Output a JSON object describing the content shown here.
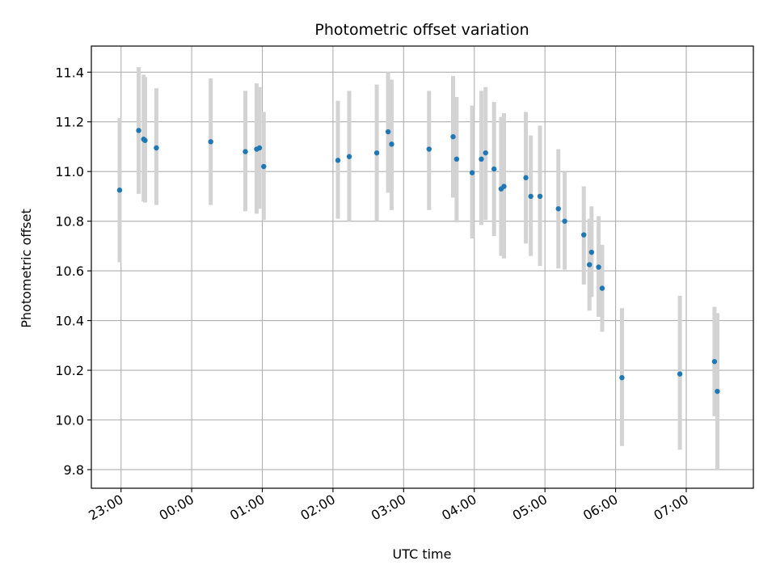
{
  "chart_data": {
    "type": "scatter",
    "title": "Photometric offset variation",
    "xlabel": "UTC time",
    "ylabel": "Photometric offset",
    "x_unit": "UTC time (hours; 23:00 = 23, values past midnight continue as 24+)",
    "xlim": [
      22.58,
      31.95
    ],
    "ylim": [
      9.725,
      11.505
    ],
    "x_ticks": [
      {
        "value": 23,
        "label": "23:00"
      },
      {
        "value": 24,
        "label": "00:00"
      },
      {
        "value": 25,
        "label": "01:00"
      },
      {
        "value": 26,
        "label": "02:00"
      },
      {
        "value": 27,
        "label": "03:00"
      },
      {
        "value": 28,
        "label": "04:00"
      },
      {
        "value": 29,
        "label": "05:00"
      },
      {
        "value": 30,
        "label": "06:00"
      },
      {
        "value": 31,
        "label": "07:00"
      }
    ],
    "y_ticks": [
      {
        "value": 9.8,
        "label": "9.8"
      },
      {
        "value": 10.0,
        "label": "10.0"
      },
      {
        "value": 10.2,
        "label": "10.2"
      },
      {
        "value": 10.4,
        "label": "10.4"
      },
      {
        "value": 10.6,
        "label": "10.6"
      },
      {
        "value": 10.8,
        "label": "10.8"
      },
      {
        "value": 11.0,
        "label": "11.0"
      },
      {
        "value": 11.2,
        "label": "11.2"
      },
      {
        "value": 11.4,
        "label": "11.4"
      }
    ],
    "grid": true,
    "colors": {
      "point": "#1f77b4",
      "errorbar": "#d3d3d3",
      "grid": "#b0b0b0"
    },
    "points": [
      {
        "x": 22.98,
        "y": 10.925,
        "err_low": 10.635,
        "err_high": 11.215
      },
      {
        "x": 23.25,
        "y": 11.165,
        "err_low": 10.91,
        "err_high": 11.42
      },
      {
        "x": 23.32,
        "y": 11.13,
        "err_low": 10.88,
        "err_high": 11.39
      },
      {
        "x": 23.34,
        "y": 11.125,
        "err_low": 10.875,
        "err_high": 11.38
      },
      {
        "x": 23.5,
        "y": 11.095,
        "err_low": 10.865,
        "err_high": 11.335
      },
      {
        "x": 24.27,
        "y": 11.12,
        "err_low": 10.865,
        "err_high": 11.375
      },
      {
        "x": 24.76,
        "y": 11.08,
        "err_low": 10.84,
        "err_high": 11.325
      },
      {
        "x": 24.92,
        "y": 11.09,
        "err_low": 10.83,
        "err_high": 11.355
      },
      {
        "x": 24.96,
        "y": 11.095,
        "err_low": 10.85,
        "err_high": 11.34
      },
      {
        "x": 25.02,
        "y": 11.02,
        "err_low": 10.805,
        "err_high": 11.24
      },
      {
        "x": 26.07,
        "y": 11.045,
        "err_low": 10.81,
        "err_high": 11.285
      },
      {
        "x": 26.23,
        "y": 11.06,
        "err_low": 10.8,
        "err_high": 11.325
      },
      {
        "x": 26.62,
        "y": 11.075,
        "err_low": 10.8,
        "err_high": 11.35
      },
      {
        "x": 26.78,
        "y": 11.16,
        "err_low": 10.915,
        "err_high": 11.4
      },
      {
        "x": 26.83,
        "y": 11.11,
        "err_low": 10.845,
        "err_high": 11.37
      },
      {
        "x": 27.36,
        "y": 11.09,
        "err_low": 10.845,
        "err_high": 11.325
      },
      {
        "x": 27.7,
        "y": 11.14,
        "err_low": 10.895,
        "err_high": 11.385
      },
      {
        "x": 27.75,
        "y": 11.05,
        "err_low": 10.795,
        "err_high": 11.3
      },
      {
        "x": 27.97,
        "y": 10.995,
        "err_low": 10.73,
        "err_high": 11.265
      },
      {
        "x": 28.1,
        "y": 11.05,
        "err_low": 10.785,
        "err_high": 11.325
      },
      {
        "x": 28.16,
        "y": 11.075,
        "err_low": 10.805,
        "err_high": 11.34
      },
      {
        "x": 28.28,
        "y": 11.01,
        "err_low": 10.74,
        "err_high": 11.28
      },
      {
        "x": 28.38,
        "y": 10.93,
        "err_low": 10.66,
        "err_high": 11.22
      },
      {
        "x": 28.42,
        "y": 10.94,
        "err_low": 10.65,
        "err_high": 11.235
      },
      {
        "x": 28.73,
        "y": 10.975,
        "err_low": 10.71,
        "err_high": 11.24
      },
      {
        "x": 28.8,
        "y": 10.9,
        "err_low": 10.66,
        "err_high": 11.145
      },
      {
        "x": 28.93,
        "y": 10.9,
        "err_low": 10.62,
        "err_high": 11.185
      },
      {
        "x": 29.19,
        "y": 10.85,
        "err_low": 10.61,
        "err_high": 11.09
      },
      {
        "x": 29.28,
        "y": 10.8,
        "err_low": 10.605,
        "err_high": 11.0
      },
      {
        "x": 29.55,
        "y": 10.745,
        "err_low": 10.545,
        "err_high": 10.94
      },
      {
        "x": 29.63,
        "y": 10.625,
        "err_low": 10.44,
        "err_high": 10.81
      },
      {
        "x": 29.66,
        "y": 10.675,
        "err_low": 10.495,
        "err_high": 10.86
      },
      {
        "x": 29.76,
        "y": 10.615,
        "err_low": 10.415,
        "err_high": 10.82
      },
      {
        "x": 29.81,
        "y": 10.53,
        "err_low": 10.355,
        "err_high": 10.705
      },
      {
        "x": 30.09,
        "y": 10.17,
        "err_low": 9.895,
        "err_high": 10.45
      },
      {
        "x": 30.91,
        "y": 10.185,
        "err_low": 9.88,
        "err_high": 10.5
      },
      {
        "x": 31.4,
        "y": 10.235,
        "err_low": 10.015,
        "err_high": 10.455
      },
      {
        "x": 31.44,
        "y": 10.115,
        "err_low": 9.8,
        "err_high": 10.43
      }
    ]
  }
}
